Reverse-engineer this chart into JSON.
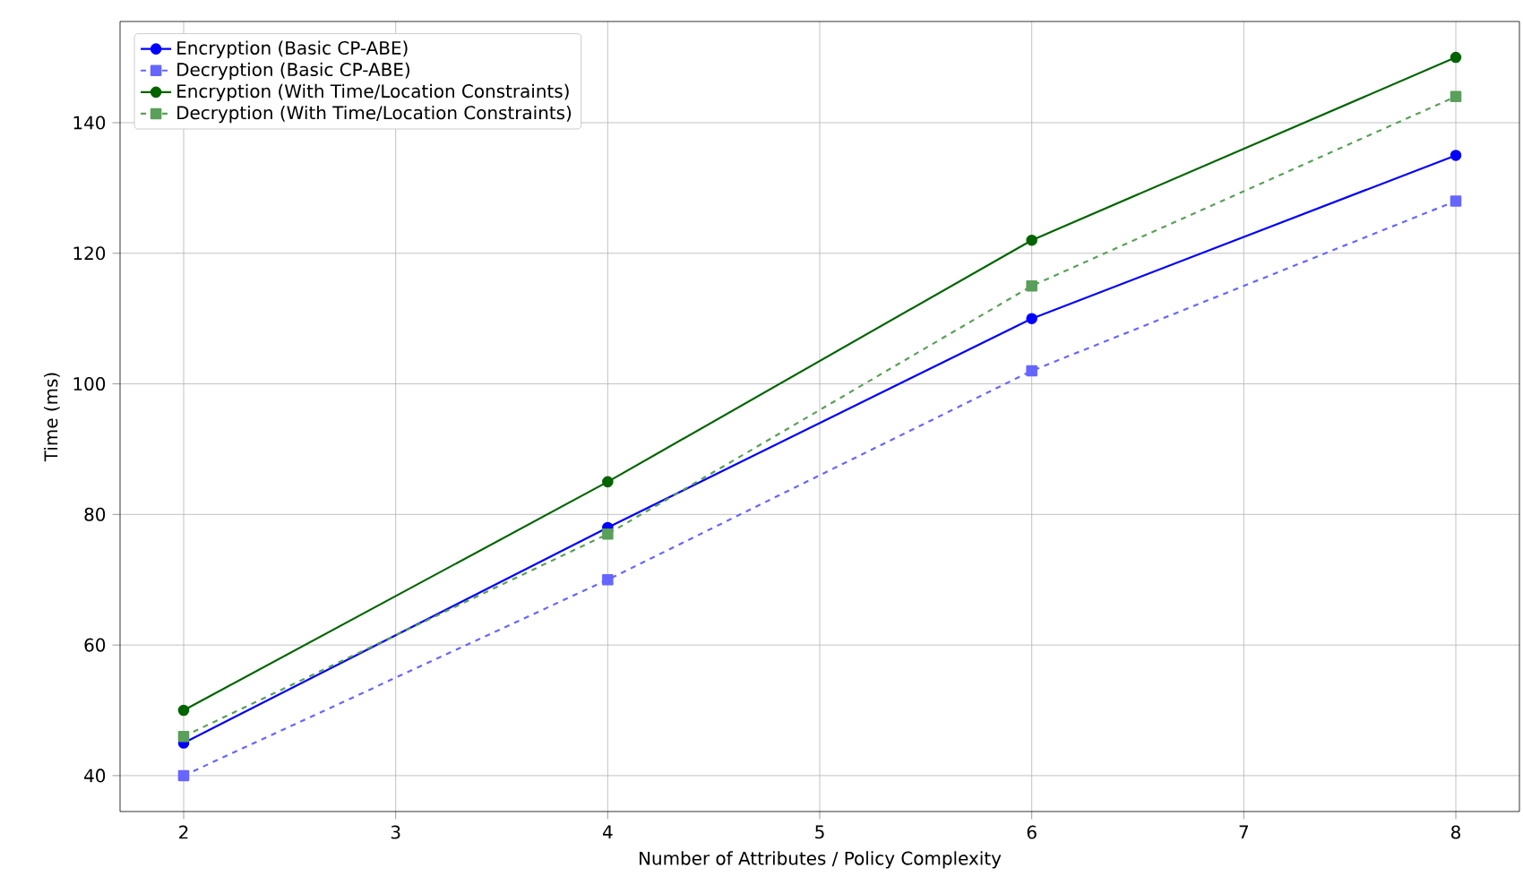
{
  "chart_data": {
    "type": "line",
    "xlabel": "Number of Attributes / Policy Complexity",
    "ylabel": "Time (ms)",
    "x": [
      2,
      4,
      6,
      8
    ],
    "series": [
      {
        "name": "Encryption (Basic CP-ABE)",
        "color": "#0000ff",
        "marker": "circle",
        "line_style": "solid",
        "values": [
          45,
          78,
          110,
          135
        ]
      },
      {
        "name": "Decryption (Basic CP-ABE)",
        "color": "#6666ff",
        "marker": "square",
        "line_style": "dashed",
        "values": [
          40,
          70,
          102,
          128
        ]
      },
      {
        "name": "Encryption (With Time/Location Constraints)",
        "color": "#006400",
        "marker": "circle",
        "line_style": "solid",
        "values": [
          50,
          85,
          122,
          150
        ]
      },
      {
        "name": "Decryption (With Time/Location Constraints)",
        "color": "#5a9f5a",
        "marker": "square",
        "line_style": "dashed",
        "values": [
          46,
          77,
          115,
          144
        ]
      }
    ],
    "xlim": [
      1.7,
      8.3
    ],
    "ylim": [
      34.5,
      155.5
    ],
    "xticks": [
      2,
      3,
      4,
      5,
      6,
      7,
      8
    ],
    "yticks": [
      40,
      60,
      80,
      100,
      120,
      140
    ],
    "grid": true,
    "legend": "top left"
  }
}
